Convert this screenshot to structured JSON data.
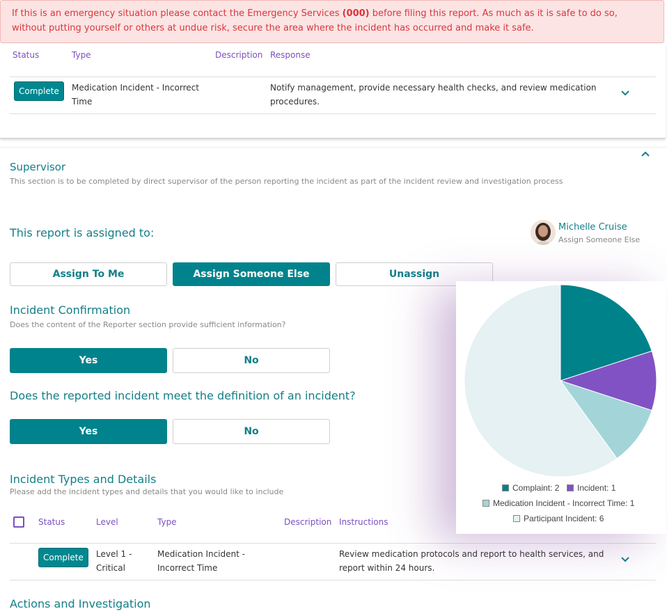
{
  "alert": {
    "pre": "If this is an emergency situation please contact the Emergency Services ",
    "bold": "(000)",
    "post": " before filing this report. As much as it is safe to do so,",
    "line2": "without putting yourself or others at undue risk, secure the area where the incident has occurred and make it safe."
  },
  "reporter_table": {
    "headers": {
      "status": "Status",
      "type": "Type",
      "description": "Description",
      "response": "Response"
    },
    "row": {
      "status": "Complete",
      "type_l1": "Medication Incident - Incorrect",
      "type_l2": "Time",
      "response_l1": "Notify management, provide necessary health checks, and review medication",
      "response_l2": "procedures."
    }
  },
  "supervisor": {
    "title": "Supervisor",
    "subtitle": "This section is to be completed by direct supervisor of the person reporting the incident as part of the incident review and investigation process",
    "assigned_label": "This report is assigned to:",
    "assignee_name": "Michelle Cruise",
    "assignee_link": "Assign Someone Else",
    "buttons": {
      "assign_me": "Assign To Me",
      "assign_else": "Assign Someone Else",
      "unassign": "Unassign"
    }
  },
  "confirmation": {
    "title": "Incident Confirmation",
    "question": "Does the content of the Reporter section provide sufficient information?",
    "yes": "Yes",
    "no": "No"
  },
  "definition": {
    "question": "Does the reported incident meet the definition of an incident?",
    "yes": "Yes",
    "no": "No"
  },
  "incident_types": {
    "title": "Incident Types and Details",
    "subtitle": "Please add the incident types and details that you would like to include",
    "headers": {
      "status": "Status",
      "level": "Level",
      "type": "Type",
      "description": "Description",
      "instructions": "Instructions"
    },
    "row": {
      "status": "Complete",
      "level_l1": "Level 1 -",
      "level_l2": "Critical",
      "type_l1": "Medication Incident -",
      "type_l2": "Incorrect Time",
      "instr_l1": "Review medication protocols and report to health services, and",
      "instr_l2": "report within 24 hours."
    }
  },
  "actions": {
    "title": "Actions and Investigation"
  },
  "colors": {
    "teal": "#00838c",
    "purple": "#7b4fc0",
    "alert": "#d9363e"
  },
  "chart_data": {
    "type": "pie",
    "slices": [
      {
        "label": "Complaint",
        "value": 2,
        "color": "#00828a"
      },
      {
        "label": "Incident",
        "value": 1,
        "color": "#8152c4"
      },
      {
        "label": "Medication Incident - Incorrect Time",
        "value": 1,
        "color": "#a3d5d8"
      },
      {
        "label": "Participant Incident",
        "value": 6,
        "color": "#e5f1f2"
      }
    ],
    "legend_text": [
      "Complaint: 2",
      "Incident: 1",
      "Medication Incident - Incorrect Time: 1",
      "Participant Incident: 6"
    ],
    "legend_position": "bottom"
  }
}
